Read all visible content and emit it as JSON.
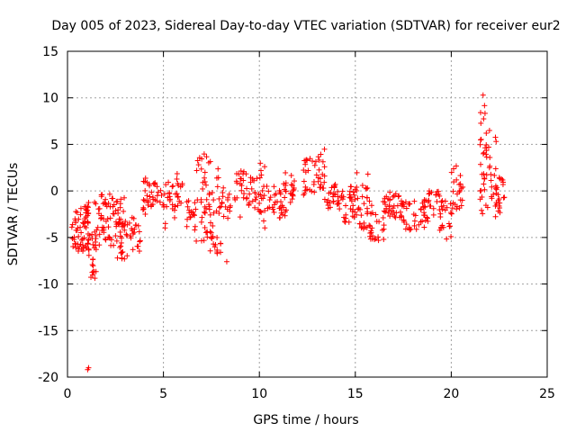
{
  "chart_data": {
    "type": "scatter",
    "title": "Day 005 of 2023, Sidereal Day-to-day VTEC variation (SDTVAR) for receiver eur2",
    "xlabel": "GPS time / hours",
    "ylabel": "SDTVAR / TECUs",
    "xlim": [
      0,
      25
    ],
    "ylim": [
      -20,
      15
    ],
    "xticks": [
      0,
      5,
      10,
      15,
      20,
      25
    ],
    "yticks": [
      -20,
      -15,
      -10,
      -5,
      0,
      5,
      10,
      15
    ],
    "xtick_labels": [
      "0",
      "5",
      "10",
      "15",
      "20",
      "25"
    ],
    "ytick_labels": [
      "-20",
      "-15",
      "-10",
      "-5",
      "0",
      "5",
      "10",
      "15"
    ],
    "grid": true,
    "marker": "+",
    "color": "#ff0000",
    "series": [
      {
        "name": "SDTVAR",
        "segments": [
          {
            "x": [
              0.2,
              1.1
            ],
            "y": [
              -6.5,
              -1.5
            ],
            "n": 55
          },
          {
            "x": [
              0.85,
              1.2
            ],
            "y": [
              -4.0,
              -0.6
            ],
            "n": 12
          },
          {
            "x": [
              1.1,
              1.5
            ],
            "y": [
              -10.2,
              -4.5
            ],
            "n": 20
          },
          {
            "x": [
              1.4,
              2.4
            ],
            "y": [
              -6.0,
              -0.3
            ],
            "n": 45
          },
          {
            "x": [
              2.3,
              3.0
            ],
            "y": [
              -4.0,
              -0.5
            ],
            "n": 18
          },
          {
            "x": [
              2.5,
              3.3
            ],
            "y": [
              -7.5,
              -3.0
            ],
            "n": 35
          },
          {
            "x": [
              3.3,
              3.8
            ],
            "y": [
              -6.5,
              -2.5
            ],
            "n": 18
          },
          {
            "x": [
              3.9,
              4.6
            ],
            "y": [
              -2.5,
              1.5
            ],
            "n": 30
          },
          {
            "x": [
              4.6,
              5.0
            ],
            "y": [
              -1.5,
              0.5
            ],
            "n": 8
          },
          {
            "x": [
              5.0,
              5.5
            ],
            "y": [
              -4.5,
              1.0
            ],
            "n": 18
          },
          {
            "x": [
              5.5,
              6.0
            ],
            "y": [
              -3.0,
              2.0
            ],
            "n": 18
          },
          {
            "x": [
              6.2,
              6.7
            ],
            "y": [
              -4.5,
              -1.0
            ],
            "n": 18
          },
          {
            "x": [
              6.7,
              7.5
            ],
            "y": [
              -5.5,
              4.0
            ],
            "n": 40
          },
          {
            "x": [
              7.4,
              8.0
            ],
            "y": [
              -7.0,
              2.5
            ],
            "n": 30
          },
          {
            "x": [
              8.0,
              8.5
            ],
            "y": [
              -3.0,
              0.5
            ],
            "n": 15
          },
          {
            "x": [
              8.7,
              9.4
            ],
            "y": [
              -1.0,
              2.5
            ],
            "n": 22
          },
          {
            "x": [
              9.4,
              10.1
            ],
            "y": [
              -2.0,
              1.5
            ],
            "n": 22
          },
          {
            "x": [
              9.9,
              10.3
            ],
            "y": [
              -4.0,
              3.0
            ],
            "n": 15
          },
          {
            "x": [
              10.3,
              11.4
            ],
            "y": [
              -3.0,
              1.0
            ],
            "n": 35
          },
          {
            "x": [
              11.3,
              11.9
            ],
            "y": [
              -1.5,
              2.0
            ],
            "n": 18
          },
          {
            "x": [
              12.3,
              12.9
            ],
            "y": [
              -0.5,
              3.5
            ],
            "n": 22
          },
          {
            "x": [
              12.9,
              13.4
            ],
            "y": [
              0.0,
              4.5
            ],
            "n": 20
          },
          {
            "x": [
              13.4,
              14.0
            ],
            "y": [
              -2.0,
              1.0
            ],
            "n": 18
          },
          {
            "x": [
              13.8,
              15.0
            ],
            "y": [
              -3.5,
              0.5
            ],
            "n": 40
          },
          {
            "x": [
              15.0,
              15.7
            ],
            "y": [
              -4.5,
              2.0
            ],
            "n": 30
          },
          {
            "x": [
              15.7,
              16.6
            ],
            "y": [
              -5.5,
              -1.0
            ],
            "n": 30
          },
          {
            "x": [
              16.4,
              17.4
            ],
            "y": [
              -3.0,
              0.0
            ],
            "n": 30
          },
          {
            "x": [
              17.3,
              18.8
            ],
            "y": [
              -4.2,
              -1.0
            ],
            "n": 45
          },
          {
            "x": [
              18.6,
              19.4
            ],
            "y": [
              -3.0,
              0.0
            ],
            "n": 22
          },
          {
            "x": [
              19.4,
              20.1
            ],
            "y": [
              -6.0,
              -1.0
            ],
            "n": 25
          },
          {
            "x": [
              20.0,
              20.6
            ],
            "y": [
              -2.5,
              3.0
            ],
            "n": 22
          },
          {
            "x": [
              21.5,
              21.8
            ],
            "y": [
              -2.5,
              10.5
            ],
            "n": 25
          },
          {
            "x": [
              21.8,
              22.4
            ],
            "y": [
              -3.0,
              6.5
            ],
            "n": 28
          },
          {
            "x": [
              22.3,
              22.8
            ],
            "y": [
              -2.5,
              1.5
            ],
            "n": 20
          }
        ],
        "outliers": [
          {
            "x": 1.1,
            "y": -19.0
          },
          {
            "x": 1.05,
            "y": -19.2
          },
          {
            "x": 9.0,
            "y": -2.8
          },
          {
            "x": 8.3,
            "y": -7.6
          }
        ]
      }
    ]
  }
}
